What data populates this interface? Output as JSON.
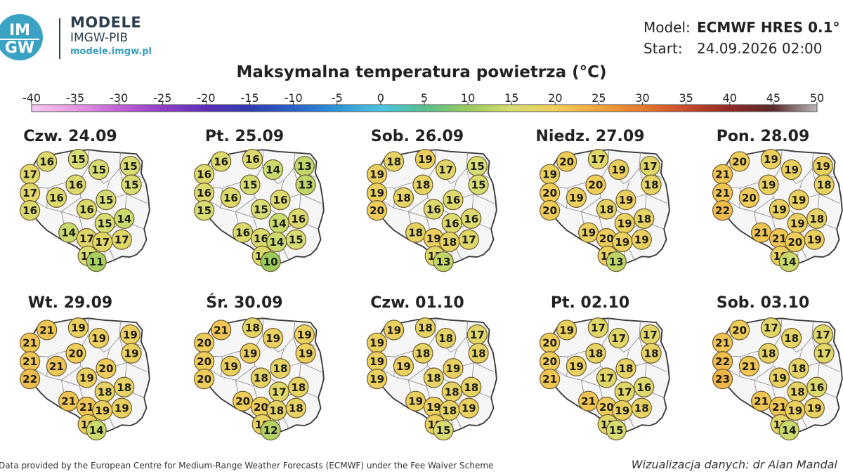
{
  "header": {
    "brand_title": "MODELE",
    "brand_subtitle": "IMGW-PIB",
    "brand_url": "modele.imgw.pl",
    "logo_text_top": "IM",
    "logo_text_bottom": "GW",
    "model_label": "Model:",
    "model_value": "ECMWF HRES 0.1°",
    "start_label": "Start:",
    "start_value": "24.09.2026 02:00"
  },
  "title": "Maksymalna temperatura powietrza (°C)",
  "scale": {
    "ticks": [
      -40,
      -35,
      -30,
      -25,
      -20,
      -15,
      -10,
      -5,
      0,
      5,
      10,
      15,
      20,
      25,
      30,
      35,
      40,
      45,
      50
    ],
    "colors": {
      "-40": "#f3c9ee",
      "-35": "#e799e2",
      "-30": "#c261d4",
      "-25": "#8f3fc7",
      "-20": "#5b2eb8",
      "-15": "#2f3bb0",
      "-10": "#2a62c9",
      "-5": "#2f95d8",
      "0": "#4cc4e0",
      "5": "#58c08e",
      "10": "#9acc5a",
      "15": "#d7dd72",
      "20": "#f0cd5a",
      "25": "#f0a53a",
      "30": "#e5792e",
      "35": "#c94a2b",
      "40": "#8e2a25",
      "45": "#5a2a2a",
      "50": "#b9b9b9"
    }
  },
  "days": [
    {
      "label": "Czw. 24.09",
      "values": [
        16,
        15,
        17,
        15,
        15,
        16,
        15,
        17,
        16,
        15,
        16,
        16,
        15,
        14,
        14,
        17,
        17,
        17,
        15,
        11
      ]
    },
    {
      "label": "Pt. 25.09",
      "values": [
        16,
        16,
        16,
        14,
        13,
        15,
        13,
        16,
        16,
        16,
        15,
        15,
        14,
        16,
        16,
        16,
        14,
        15,
        16,
        10
      ]
    },
    {
      "label": "Sob. 26.09",
      "values": [
        18,
        19,
        19,
        17,
        15,
        18,
        15,
        19,
        18,
        16,
        20,
        16,
        16,
        16,
        18,
        19,
        18,
        17,
        17,
        13
      ]
    },
    {
      "label": "Niedz. 27.09",
      "values": [
        20,
        17,
        19,
        19,
        17,
        20,
        18,
        20,
        19,
        19,
        20,
        18,
        19,
        18,
        19,
        20,
        19,
        19,
        19,
        13
      ]
    },
    {
      "label": "Pon. 28.09",
      "values": [
        20,
        19,
        21,
        19,
        19,
        19,
        18,
        21,
        20,
        19,
        22,
        19,
        19,
        18,
        21,
        21,
        20,
        19,
        19,
        14
      ]
    },
    {
      "label": "Wt. 29.09",
      "values": [
        21,
        19,
        21,
        19,
        19,
        20,
        19,
        21,
        21,
        20,
        22,
        19,
        18,
        18,
        21,
        21,
        19,
        19,
        19,
        14
      ]
    },
    {
      "label": "Śr. 30.09",
      "values": [
        21,
        18,
        20,
        19,
        19,
        19,
        19,
        20,
        19,
        18,
        20,
        18,
        17,
        18,
        20,
        20,
        18,
        18,
        18,
        12
      ]
    },
    {
      "label": "Czw. 01.10",
      "values": [
        19,
        18,
        19,
        18,
        17,
        18,
        18,
        19,
        19,
        19,
        19,
        18,
        18,
        18,
        19,
        19,
        18,
        19,
        19,
        15
      ]
    },
    {
      "label": "Pt. 02.10",
      "values": [
        19,
        17,
        20,
        17,
        17,
        18,
        18,
        20,
        19,
        18,
        21,
        17,
        17,
        16,
        21,
        20,
        19,
        18,
        17,
        15
      ]
    },
    {
      "label": "Sob. 03.10",
      "values": [
        20,
        17,
        21,
        18,
        17,
        18,
        17,
        22,
        21,
        18,
        23,
        19,
        18,
        16,
        21,
        21,
        19,
        19,
        17,
        14
      ]
    }
  ],
  "footer": {
    "left": "Data provided by the European Centre for Medium-Range Weather Forecasts (ECMWF) under the Fee Waiver Scheme",
    "right": "Wizualizacja danych: dr Alan Mandal"
  }
}
